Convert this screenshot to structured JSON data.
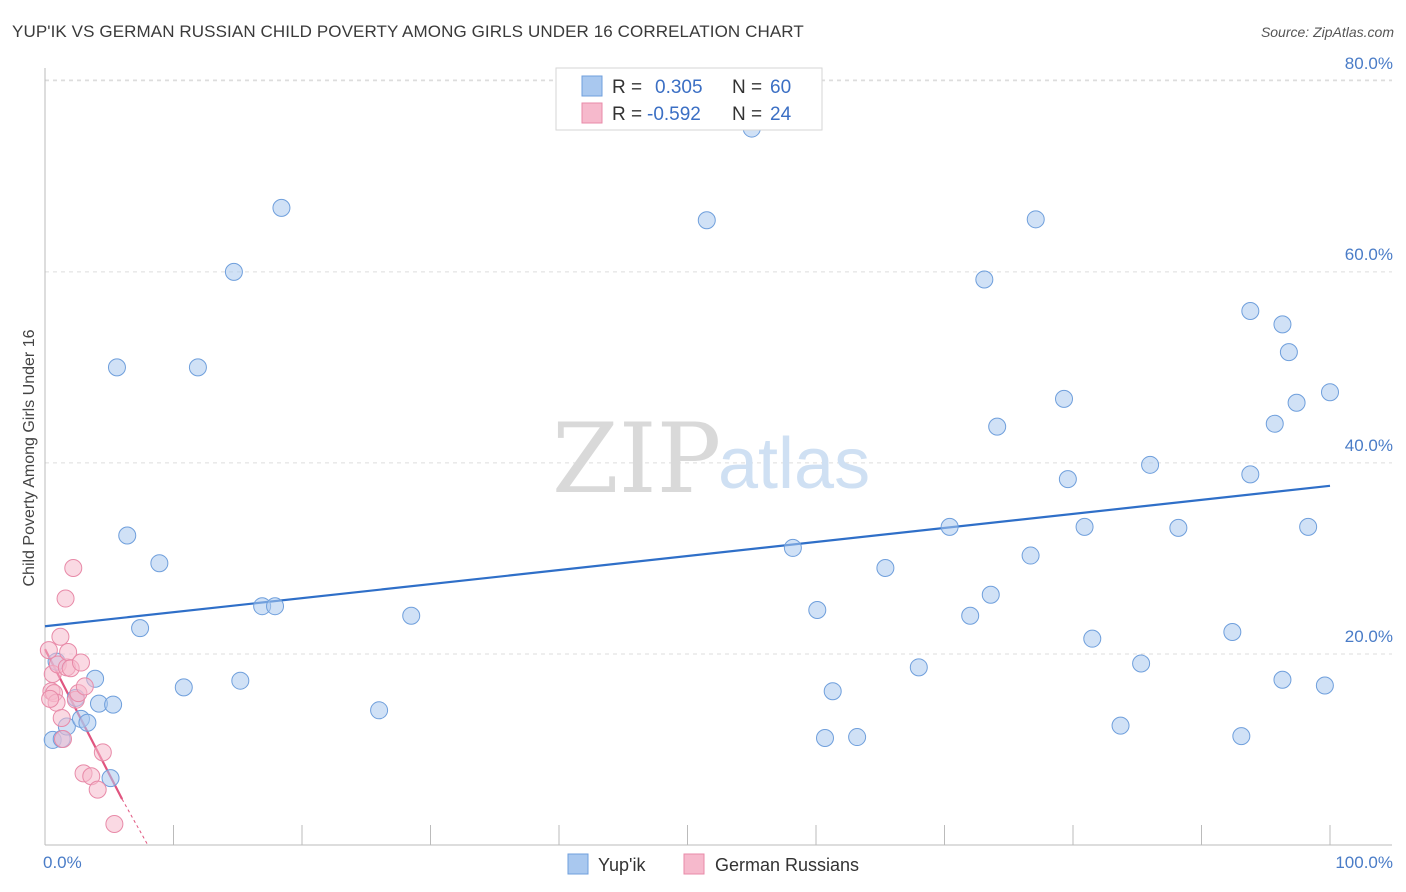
{
  "header": {
    "title": "YUP'IK VS GERMAN RUSSIAN CHILD POVERTY AMONG GIRLS UNDER 16 CORRELATION CHART",
    "source": "Source: ZipAtlas.com"
  },
  "watermark": {
    "zip": "ZIP",
    "atlas": "atlas"
  },
  "colors": {
    "blue_fill": "#a9c8ef",
    "blue_stroke": "#6f9fdc",
    "blue_line": "#2f6fc8",
    "pink_fill": "#f6b9cc",
    "pink_stroke": "#e88aa8",
    "pink_line": "#e0557f",
    "grid": "#dddddd",
    "tick_label": "#4a7cc7"
  },
  "legend": {
    "rows": [
      {
        "r_label": "R =",
        "r_value": "0.305",
        "n_label": "N =",
        "n_value": "60"
      },
      {
        "r_label": "R =",
        "r_value": "-0.592",
        "n_label": "N =",
        "n_value": "24"
      }
    ]
  },
  "chart_data": {
    "type": "scatter",
    "title": "YUP'IK VS GERMAN RUSSIAN CHILD POVERTY AMONG GIRLS UNDER 16 CORRELATION CHART",
    "xlabel": "",
    "ylabel": "Child Poverty Among Girls Under 16",
    "xlim": [
      0,
      100
    ],
    "ylim": [
      0,
      82
    ],
    "x_tick_labels": [
      "0.0%",
      "100.0%"
    ],
    "y_ticks": [
      20,
      40,
      60,
      80
    ],
    "y_tick_labels": [
      "20.0%",
      "40.0%",
      "60.0%",
      "80.0%"
    ],
    "grid": true,
    "legend_position": "top-center",
    "series": [
      {
        "name": "Yup'ik",
        "color": "#a9c8ef",
        "trend": {
          "x": [
            0,
            100
          ],
          "y": [
            22.9,
            37.6
          ]
        },
        "points": [
          {
            "x": 0.6,
            "y": 11.0
          },
          {
            "x": 1.3,
            "y": 11.1
          },
          {
            "x": 1.7,
            "y": 12.4
          },
          {
            "x": 2.4,
            "y": 15.4
          },
          {
            "x": 2.8,
            "y": 13.2
          },
          {
            "x": 3.3,
            "y": 12.8
          },
          {
            "x": 3.9,
            "y": 17.4
          },
          {
            "x": 4.2,
            "y": 14.8
          },
          {
            "x": 5.3,
            "y": 14.7
          },
          {
            "x": 5.1,
            "y": 7.0
          },
          {
            "x": 5.6,
            "y": 50.0
          },
          {
            "x": 6.4,
            "y": 32.4
          },
          {
            "x": 7.4,
            "y": 22.7
          },
          {
            "x": 8.9,
            "y": 29.5
          },
          {
            "x": 10.8,
            "y": 16.5
          },
          {
            "x": 11.9,
            "y": 50.0
          },
          {
            "x": 14.7,
            "y": 60.0
          },
          {
            "x": 15.2,
            "y": 17.2
          },
          {
            "x": 16.9,
            "y": 25.0
          },
          {
            "x": 17.9,
            "y": 25.0
          },
          {
            "x": 18.4,
            "y": 66.7
          },
          {
            "x": 26.0,
            "y": 14.1
          },
          {
            "x": 28.5,
            "y": 24.0
          },
          {
            "x": 51.5,
            "y": 65.4
          },
          {
            "x": 55.0,
            "y": 75.0
          },
          {
            "x": 58.2,
            "y": 31.1
          },
          {
            "x": 60.1,
            "y": 24.6
          },
          {
            "x": 60.7,
            "y": 11.2
          },
          {
            "x": 61.3,
            "y": 16.1
          },
          {
            "x": 63.2,
            "y": 11.3
          },
          {
            "x": 65.4,
            "y": 29.0
          },
          {
            "x": 68.0,
            "y": 18.6
          },
          {
            "x": 70.4,
            "y": 33.3
          },
          {
            "x": 72.0,
            "y": 24.0
          },
          {
            "x": 73.1,
            "y": 59.2
          },
          {
            "x": 73.6,
            "y": 26.2
          },
          {
            "x": 74.1,
            "y": 43.8
          },
          {
            "x": 76.7,
            "y": 30.3
          },
          {
            "x": 77.1,
            "y": 65.5
          },
          {
            "x": 79.3,
            "y": 46.7
          },
          {
            "x": 79.6,
            "y": 38.3
          },
          {
            "x": 80.9,
            "y": 33.3
          },
          {
            "x": 81.5,
            "y": 21.6
          },
          {
            "x": 83.7,
            "y": 12.5
          },
          {
            "x": 85.3,
            "y": 19.0
          },
          {
            "x": 86.0,
            "y": 39.8
          },
          {
            "x": 88.2,
            "y": 33.2
          },
          {
            "x": 92.4,
            "y": 22.3
          },
          {
            "x": 93.8,
            "y": 38.8
          },
          {
            "x": 93.1,
            "y": 11.4
          },
          {
            "x": 93.8,
            "y": 55.9
          },
          {
            "x": 95.7,
            "y": 44.1
          },
          {
            "x": 96.3,
            "y": 54.5
          },
          {
            "x": 96.3,
            "y": 17.3
          },
          {
            "x": 96.8,
            "y": 51.6
          },
          {
            "x": 97.4,
            "y": 46.3
          },
          {
            "x": 98.3,
            "y": 33.3
          },
          {
            "x": 100.0,
            "y": 47.4
          },
          {
            "x": 99.6,
            "y": 16.7
          },
          {
            "x": 0.9,
            "y": 19.2
          }
        ]
      },
      {
        "name": "German Russians",
        "color": "#f6b9cc",
        "trend": {
          "x": [
            0,
            6.0
          ],
          "y": [
            20.5,
            4.8
          ]
        },
        "trend_extension": {
          "x": [
            6.0,
            8.0
          ],
          "y": [
            4.8,
            0
          ]
        },
        "points": [
          {
            "x": 0.3,
            "y": 20.4
          },
          {
            "x": 0.5,
            "y": 16.1
          },
          {
            "x": 0.6,
            "y": 17.9
          },
          {
            "x": 0.7,
            "y": 15.9
          },
          {
            "x": 0.9,
            "y": 14.9
          },
          {
            "x": 1.0,
            "y": 18.9
          },
          {
            "x": 1.2,
            "y": 21.8
          },
          {
            "x": 1.3,
            "y": 13.3
          },
          {
            "x": 1.4,
            "y": 11.1
          },
          {
            "x": 1.6,
            "y": 25.8
          },
          {
            "x": 1.7,
            "y": 18.6
          },
          {
            "x": 1.8,
            "y": 20.2
          },
          {
            "x": 2.0,
            "y": 18.5
          },
          {
            "x": 2.2,
            "y": 29.0
          },
          {
            "x": 2.4,
            "y": 15.2
          },
          {
            "x": 2.6,
            "y": 15.9
          },
          {
            "x": 2.8,
            "y": 19.1
          },
          {
            "x": 3.0,
            "y": 7.5
          },
          {
            "x": 3.1,
            "y": 16.6
          },
          {
            "x": 3.6,
            "y": 7.2
          },
          {
            "x": 4.1,
            "y": 5.8
          },
          {
            "x": 4.5,
            "y": 9.7
          },
          {
            "x": 5.4,
            "y": 2.2
          },
          {
            "x": 0.4,
            "y": 15.3
          }
        ]
      }
    ]
  },
  "bottom_legend": {
    "items": [
      "Yup'ik",
      "German Russians"
    ]
  }
}
